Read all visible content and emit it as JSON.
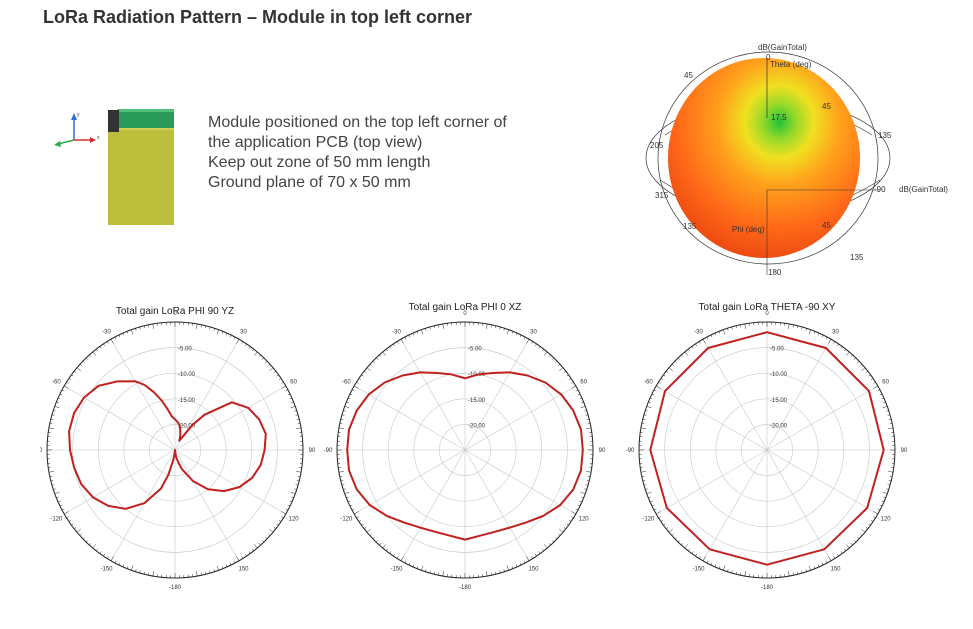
{
  "page": {
    "title": "LoRa Radiation Pattern – Module in top left corner",
    "description_lines": [
      "Module positioned on the top left corner of",
      "the application PCB (top view)",
      "Keep out zone of 50 mm length",
      "Ground plane of 70 x 50 mm"
    ]
  },
  "axes_icon": {
    "y_label": "y",
    "x_label": "x"
  },
  "colors": {
    "curve": "#c0201e",
    "board": "#bdbe3c",
    "board_edge": "#8c8d1f",
    "module": "#2a9a5b",
    "module_dark": "#333333",
    "grid": "#c8c8c8",
    "frame": "#222222"
  },
  "pattern3d": {
    "label_top": "dB(GainTotal)",
    "label_top_value": "0",
    "theta_label": "Theta (deg)",
    "right_axis_label": "dB(GainTotal)",
    "right_axis_value": "-90",
    "phi_label": "Phi (deg)",
    "value_label": "17.5",
    "tick_labels": [
      "45",
      "45",
      "135",
      "135",
      "180",
      "315",
      "205",
      "135",
      "45"
    ]
  },
  "chart_data": [
    {
      "type": "polar",
      "title": "Total gain LoRa PHI 90 YZ",
      "angle_labels": [
        "0",
        "30",
        "60",
        "90",
        "120",
        "150",
        "-180",
        "-150",
        "-120",
        "-90",
        "-60",
        "-30"
      ],
      "ring_labels": [
        "-5.00",
        "-10.00",
        "-15.00",
        "-20.00"
      ],
      "rlim": [
        -25,
        0
      ],
      "series": [
        {
          "angles": [
            0,
            5,
            10,
            15,
            20,
            25,
            30,
            35,
            40,
            50,
            60,
            70,
            80,
            90,
            100,
            110,
            120,
            130,
            140,
            150,
            160,
            165,
            170,
            175,
            180,
            -175,
            -170,
            -165,
            -160,
            -150,
            -140,
            -130,
            -120,
            -110,
            -100,
            -90,
            -80,
            -70,
            -60,
            -50,
            -40,
            -30,
            -25,
            -20,
            -15,
            -10,
            -5
          ],
          "gains": [
            -19,
            -19.5,
            -20,
            -21,
            -22,
            -23,
            -22,
            -19,
            -16,
            -10.5,
            -8.5,
            -7.5,
            -7,
            -7.5,
            -8,
            -9,
            -10.5,
            -12.5,
            -15,
            -18,
            -21,
            -22.5,
            -23.5,
            -24.5,
            -25,
            -24.5,
            -23,
            -20,
            -17,
            -13,
            -10,
            -8,
            -6.5,
            -5.5,
            -5,
            -4.5,
            -4,
            -4,
            -4.5,
            -5.5,
            -7.5,
            -9.5,
            -11,
            -13,
            -15,
            -17,
            -18.5
          ]
        }
      ]
    },
    {
      "type": "polar",
      "title": "Total gain LoRa PHI 0 XZ",
      "angle_labels": [
        "0",
        "30",
        "60",
        "90",
        "120",
        "150",
        "-180",
        "-150",
        "-120",
        "-90",
        "-60",
        "-30"
      ],
      "ring_labels": [
        "-5.00",
        "-10.00",
        "-15.00",
        "-20.00"
      ],
      "rlim": [
        -25,
        0
      ],
      "series": [
        {
          "angles": [
            0,
            10,
            20,
            30,
            40,
            50,
            60,
            70,
            80,
            90,
            100,
            110,
            120,
            130,
            140,
            150,
            160,
            170,
            180,
            -170,
            -160,
            -150,
            -140,
            -130,
            -120,
            -110,
            -100,
            -90,
            -80,
            -70,
            -60,
            -50,
            -40,
            -30,
            -20,
            -10
          ],
          "gains": [
            -11,
            -10,
            -9,
            -7.5,
            -6,
            -4.5,
            -3.3,
            -2.5,
            -2,
            -2,
            -2,
            -2.5,
            -3.5,
            -5,
            -6.5,
            -7.5,
            -8,
            -8,
            -7.5,
            -8,
            -8,
            -7.5,
            -6.5,
            -5,
            -3.5,
            -2.5,
            -2,
            -2,
            -2,
            -2.5,
            -3.3,
            -4.5,
            -6,
            -7.5,
            -9,
            -10
          ]
        }
      ]
    },
    {
      "type": "polar",
      "title": "Total gain LoRa THETA -90 XY",
      "angle_labels": [
        "0",
        "30",
        "60",
        "90",
        "120",
        "150",
        "-180",
        "-150",
        "-120",
        "-90",
        "-60",
        "-30"
      ],
      "ring_labels": [
        "-5.00",
        "-10.00",
        "-15.00",
        "-20.00"
      ],
      "rlim": [
        -25,
        0
      ],
      "series": [
        {
          "angles": [
            0,
            30,
            60,
            90,
            120,
            150,
            180,
            -150,
            -120,
            -90,
            -60,
            -30
          ],
          "gains": [
            -2,
            -2,
            -2,
            -2.2,
            -2.4,
            -2.6,
            -2.6,
            -2.6,
            -2.4,
            -2.2,
            -2,
            -2
          ]
        }
      ]
    }
  ]
}
